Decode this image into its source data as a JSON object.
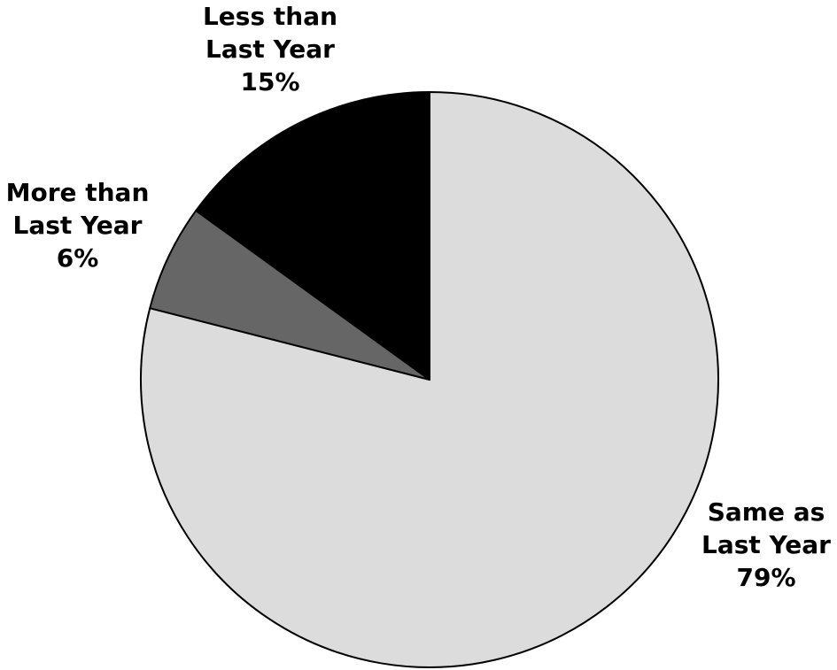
{
  "chart_data": {
    "type": "pie",
    "title": "",
    "start_angle_deg": 0,
    "direction": "clockwise",
    "slices": [
      {
        "label_lines": [
          "Same as",
          "Last Year"
        ],
        "value": 79,
        "value_label": "79%",
        "color": "#dcdcdc"
      },
      {
        "label_lines": [
          "More than",
          "Last Year"
        ],
        "value": 6,
        "value_label": "6%",
        "color": "#666666"
      },
      {
        "label_lines": [
          "Less than",
          "Last Year"
        ],
        "value": 15,
        "value_label": "15%",
        "color": "#000000"
      }
    ],
    "legend": "none",
    "labels": "outside"
  }
}
